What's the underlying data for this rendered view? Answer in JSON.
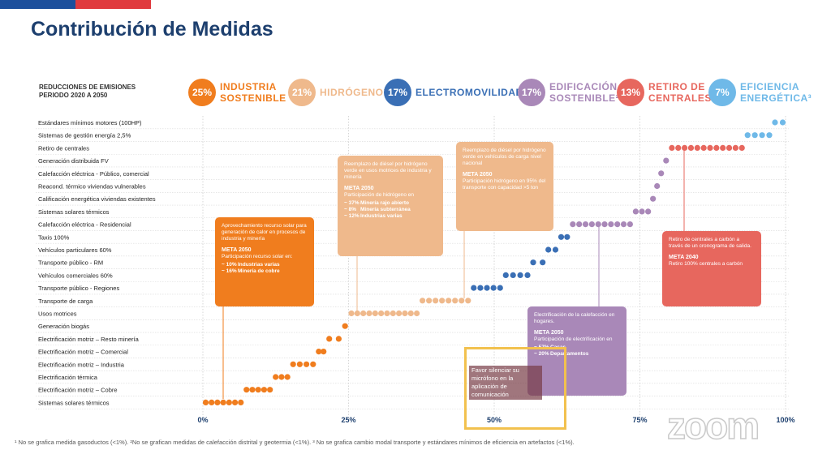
{
  "page": {
    "title": "Contribución de Medidas",
    "subtitle": "REDUCCIONES DE EMISIONES PERIODO 2020 A 2050",
    "footnote": "¹ No se grafica medida gasoductos (<1%). ²No se grafican medidas de calefacción distrital y geotermia (<1%). ³ No se grafica cambio modal transporte y estándares mínimos de eficiencia en artefactos (<1%).",
    "zoom_logo": "zoom",
    "overlay_note": "Favor silenciar su micrófono en la aplicación de comunicación",
    "flag_colors": [
      "#1c4f9c",
      "#e03a3e"
    ]
  },
  "legend": [
    {
      "pct": "25%",
      "label": "INDUSTRIA SOSTENIBLE",
      "color": "#f07d1e"
    },
    {
      "pct": "21%",
      "label": "HIDRÓGENO¹",
      "color": "#efb98c"
    },
    {
      "pct": "17%",
      "label": "ELECTROMOVILIDAD",
      "color": "#3a6fb5"
    },
    {
      "pct": "17%",
      "label": "EDIFICACIÓN SOSTENIBLE²",
      "color": "#a988b8"
    },
    {
      "pct": "13%",
      "label": "RETIRO DE CENTRALES",
      "color": "#e7675e"
    },
    {
      "pct": "7%",
      "label": "EFICIENCIA ENERGÉTICA³",
      "color": "#6fb9e8"
    }
  ],
  "chart_data": {
    "type": "scatter",
    "title": "Contribución de Medidas",
    "subtitle": "REDUCCIONES DE EMISIONES PERIODO 2020 A 2050",
    "x_axis": {
      "ticks": [
        "0%",
        "25%",
        "50%",
        "75%",
        "100%"
      ],
      "range": [
        0,
        100
      ]
    },
    "rows": [
      {
        "label": "Estándares mínimos motores (100HP)",
        "category": "EFICIENCIA ENERGÉTICA",
        "start": 97.7,
        "end": 100,
        "color": "#6fb9e8"
      },
      {
        "label": "Sistemas de gestión energía 2,5%",
        "category": "EFICIENCIA ENERGÉTICA",
        "start": 93.0,
        "end": 97.7,
        "color": "#6fb9e8"
      },
      {
        "label": "Retiro de centrales",
        "category": "RETIRO DE CENTRALES",
        "start": 80.0,
        "end": 93.0,
        "color": "#e7675e"
      },
      {
        "label": "Generación distribuida FV",
        "category": "EDIFICACIÓN SOSTENIBLE",
        "start": 79.0,
        "end": 80.0,
        "color": "#a988b8"
      },
      {
        "label": "Calefacción eléctrica - Público, comercial",
        "category": "EDIFICACIÓN SOSTENIBLE",
        "start": 78.3,
        "end": 79.0,
        "color": "#a988b8"
      },
      {
        "label": "Reacond. térmico viviendas vulnerables",
        "category": "EDIFICACIÓN SOSTENIBLE",
        "start": 77.6,
        "end": 78.3,
        "color": "#a988b8"
      },
      {
        "label": "Calificación energética viviendas existentes",
        "category": "EDIFICACIÓN SOSTENIBLE",
        "start": 76.9,
        "end": 77.6,
        "color": "#a988b8"
      },
      {
        "label": "Sistemas solares térmicos",
        "category": "EDIFICACIÓN SOSTENIBLE",
        "start": 73.8,
        "end": 76.9,
        "color": "#a988b8"
      },
      {
        "label": "Calefacción eléctrica - Residencial",
        "category": "EDIFICACIÓN SOSTENIBLE",
        "start": 63.0,
        "end": 73.8,
        "color": "#a988b8"
      },
      {
        "label": "Taxis 100%",
        "category": "ELECTROMOVILIDAD",
        "start": 61.0,
        "end": 63.0,
        "color": "#3a6fb5"
      },
      {
        "label": "Vehículos particulares 60%",
        "category": "ELECTROMOVILIDAD",
        "start": 58.8,
        "end": 61.0,
        "color": "#3a6fb5"
      },
      {
        "label": "Transporte público - RM",
        "category": "ELECTROMOVILIDAD",
        "start": 56.2,
        "end": 58.8,
        "color": "#3a6fb5"
      },
      {
        "label": "Vehículos comerciales 60%",
        "category": "ELECTROMOVILIDAD",
        "start": 51.5,
        "end": 56.2,
        "color": "#3a6fb5"
      },
      {
        "label": "Transporte público - Regiones",
        "category": "ELECTROMOVILIDAD",
        "start": 46.0,
        "end": 51.5,
        "color": "#3a6fb5"
      },
      {
        "label": "Transporte de carga",
        "category": "HIDRÓGENO",
        "start": 37.2,
        "end": 46.0,
        "color": "#efb98c"
      },
      {
        "label": "Usos motrices",
        "category": "HIDRÓGENO",
        "start": 25.0,
        "end": 37.2,
        "color": "#efb98c"
      },
      {
        "label": "Generación biogás",
        "category": "INDUSTRIA SOSTENIBLE",
        "start": 23.8,
        "end": 25.0,
        "color": "#f07d1e"
      },
      {
        "label": "Electrificación motriz – Resto minería",
        "category": "INDUSTRIA SOSTENIBLE",
        "start": 21.2,
        "end": 23.8,
        "color": "#f07d1e"
      },
      {
        "label": "Electrificación motriz – Comercial",
        "category": "INDUSTRIA SOSTENIBLE",
        "start": 19.4,
        "end": 21.2,
        "color": "#f07d1e"
      },
      {
        "label": "Electrificación motriz – Industria",
        "category": "INDUSTRIA SOSTENIBLE",
        "start": 15.0,
        "end": 19.4,
        "color": "#f07d1e"
      },
      {
        "label": "Electrificación térmica",
        "category": "INDUSTRIA SOSTENIBLE",
        "start": 12.0,
        "end": 15.0,
        "color": "#f07d1e"
      },
      {
        "label": "Electrificación motriz – Cobre",
        "category": "INDUSTRIA SOSTENIBLE",
        "start": 7.0,
        "end": 12.0,
        "color": "#f07d1e"
      },
      {
        "label": "Sistemas solares térmicos",
        "category": "INDUSTRIA SOSTENIBLE",
        "start": 0.0,
        "end": 7.0,
        "color": "#f07d1e"
      }
    ],
    "grid": true
  },
  "callouts": [
    {
      "id": "industria",
      "color": "#f07d1e",
      "text": "Aprovechamiento recurso solar para generación de calor en procesos de industria y minería",
      "meta": "META 2050",
      "meta_sub": "Participación recurso solar en:",
      "rows": [
        {
          "pct": "~ 10%",
          "desc": "Industrias varias"
        },
        {
          "pct": "~ 16%",
          "desc": "Minería de cobre"
        }
      ]
    },
    {
      "id": "hidrogeno1",
      "color": "#efb98c",
      "text": "Reemplazo de diésel por hidrógeno verde en usos motrices de industria y minería",
      "meta": "META 2050",
      "meta_sub": "Participación de hidrógeno en",
      "rows": [
        {
          "pct": "~ 37%",
          "desc": "Minería rajo abierto"
        },
        {
          "pct": "~ 8%",
          "desc": "Minería subterránea"
        },
        {
          "pct": "~ 12%",
          "desc": "Industrias varias"
        }
      ]
    },
    {
      "id": "hidrogeno2",
      "color": "#efb98c",
      "text": "Reemplazo de diésel por hidrógeno verde en vehículos de carga nivel nacional",
      "meta": "META 2050",
      "meta_sub": "Participación hidrógeno en 95% del transporte con capacidad >5 ton",
      "rows": []
    },
    {
      "id": "retiro",
      "color": "#e7675e",
      "text": "Retiro de centrales a carbón a través de un cronograma de salida.",
      "meta": "META 2040",
      "meta_sub": "Retiro 100% centrales a carbón",
      "rows": []
    },
    {
      "id": "edificacion",
      "color": "#a988b8",
      "text": "Electrificación de la calefacción en hogares.",
      "meta": "META 2050",
      "meta_sub": "Participación de electrificación en",
      "rows": [
        {
          "pct": "~ 57%",
          "desc": "Casas"
        },
        {
          "pct": "~ 20%",
          "desc": "Departamentos"
        }
      ]
    }
  ]
}
